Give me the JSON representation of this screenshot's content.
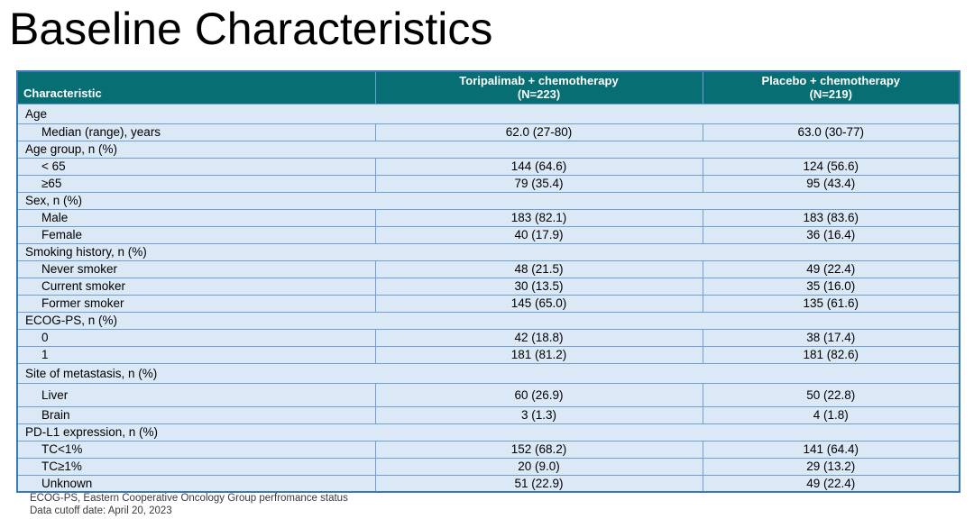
{
  "title": "Baseline Characteristics",
  "table": {
    "header": {
      "characteristic": "Characteristic",
      "toripalimab_line1": "Toripalimab + chemotherapy",
      "toripalimab_line2": "(N=223)",
      "placebo_line1": "Placebo + chemotherapy",
      "placebo_line2": "(N=219)"
    },
    "rows": [
      {
        "type": "category",
        "label": "Age"
      },
      {
        "type": "data",
        "label": "Median (range), years",
        "toripalimab": "62.0 (27-80)",
        "placebo": "63.0 (30-77)"
      },
      {
        "type": "category",
        "label": "Age group, n (%)"
      },
      {
        "type": "data",
        "label": "< 65",
        "toripalimab": "144 (64.6)",
        "placebo": "124 (56.6)"
      },
      {
        "type": "data",
        "label": "≥65",
        "toripalimab": "79 (35.4)",
        "placebo": "95 (43.4)"
      },
      {
        "type": "category",
        "label": "Sex, n (%)"
      },
      {
        "type": "data",
        "label": "Male",
        "toripalimab": "183 (82.1)",
        "placebo": "183 (83.6)"
      },
      {
        "type": "data",
        "label": "Female",
        "toripalimab": "40 (17.9)",
        "placebo": "36 (16.4)"
      },
      {
        "type": "category",
        "label": "Smoking history, n (%)"
      },
      {
        "type": "data",
        "label": "Never smoker",
        "toripalimab": "48 (21.5)",
        "placebo": "49 (22.4)"
      },
      {
        "type": "data",
        "label": "Current smoker",
        "toripalimab": "30 (13.5)",
        "placebo": "35 (16.0)"
      },
      {
        "type": "data",
        "label": "Former smoker",
        "toripalimab": "145 (65.0)",
        "placebo": "135 (61.6)"
      },
      {
        "type": "category",
        "label": "ECOG-PS, n (%)"
      },
      {
        "type": "data",
        "label": "0",
        "toripalimab": "42 (18.8)",
        "placebo": "38 (17.4)"
      },
      {
        "type": "data",
        "label": "1",
        "toripalimab": "181 (81.2)",
        "placebo": "181 (82.6)"
      },
      {
        "type": "category",
        "label": "Site of metastasis, n (%)"
      },
      {
        "type": "data",
        "label": "Liver",
        "toripalimab": "60 (26.9)",
        "placebo": "50 (22.8)"
      },
      {
        "type": "data",
        "label": "Brain",
        "toripalimab": "3 (1.3)",
        "placebo": "4 (1.8)"
      },
      {
        "type": "category",
        "label": "PD-L1 expression, n (%)"
      },
      {
        "type": "data",
        "label": "TC<1%",
        "toripalimab": "152 (68.2)",
        "placebo": "141 (64.4)"
      },
      {
        "type": "data",
        "label": "TC≥1%",
        "toripalimab": "20 (9.0)",
        "placebo": "29 (13.2)"
      },
      {
        "type": "data",
        "label": "Unknown",
        "toripalimab": "51 (22.9)",
        "placebo": "49 (22.4)"
      }
    ]
  },
  "footnotes": [
    "ECOG-PS, Eastern Cooperative Oncology Group perfromance status",
    "Data cutoff date: April 20, 2023"
  ],
  "colors": {
    "header_teal": "#076E74",
    "row_blue": "#DBE8F6",
    "grid_blue": "#6D9FD4",
    "outer_border_blue": "#3D79B8"
  }
}
